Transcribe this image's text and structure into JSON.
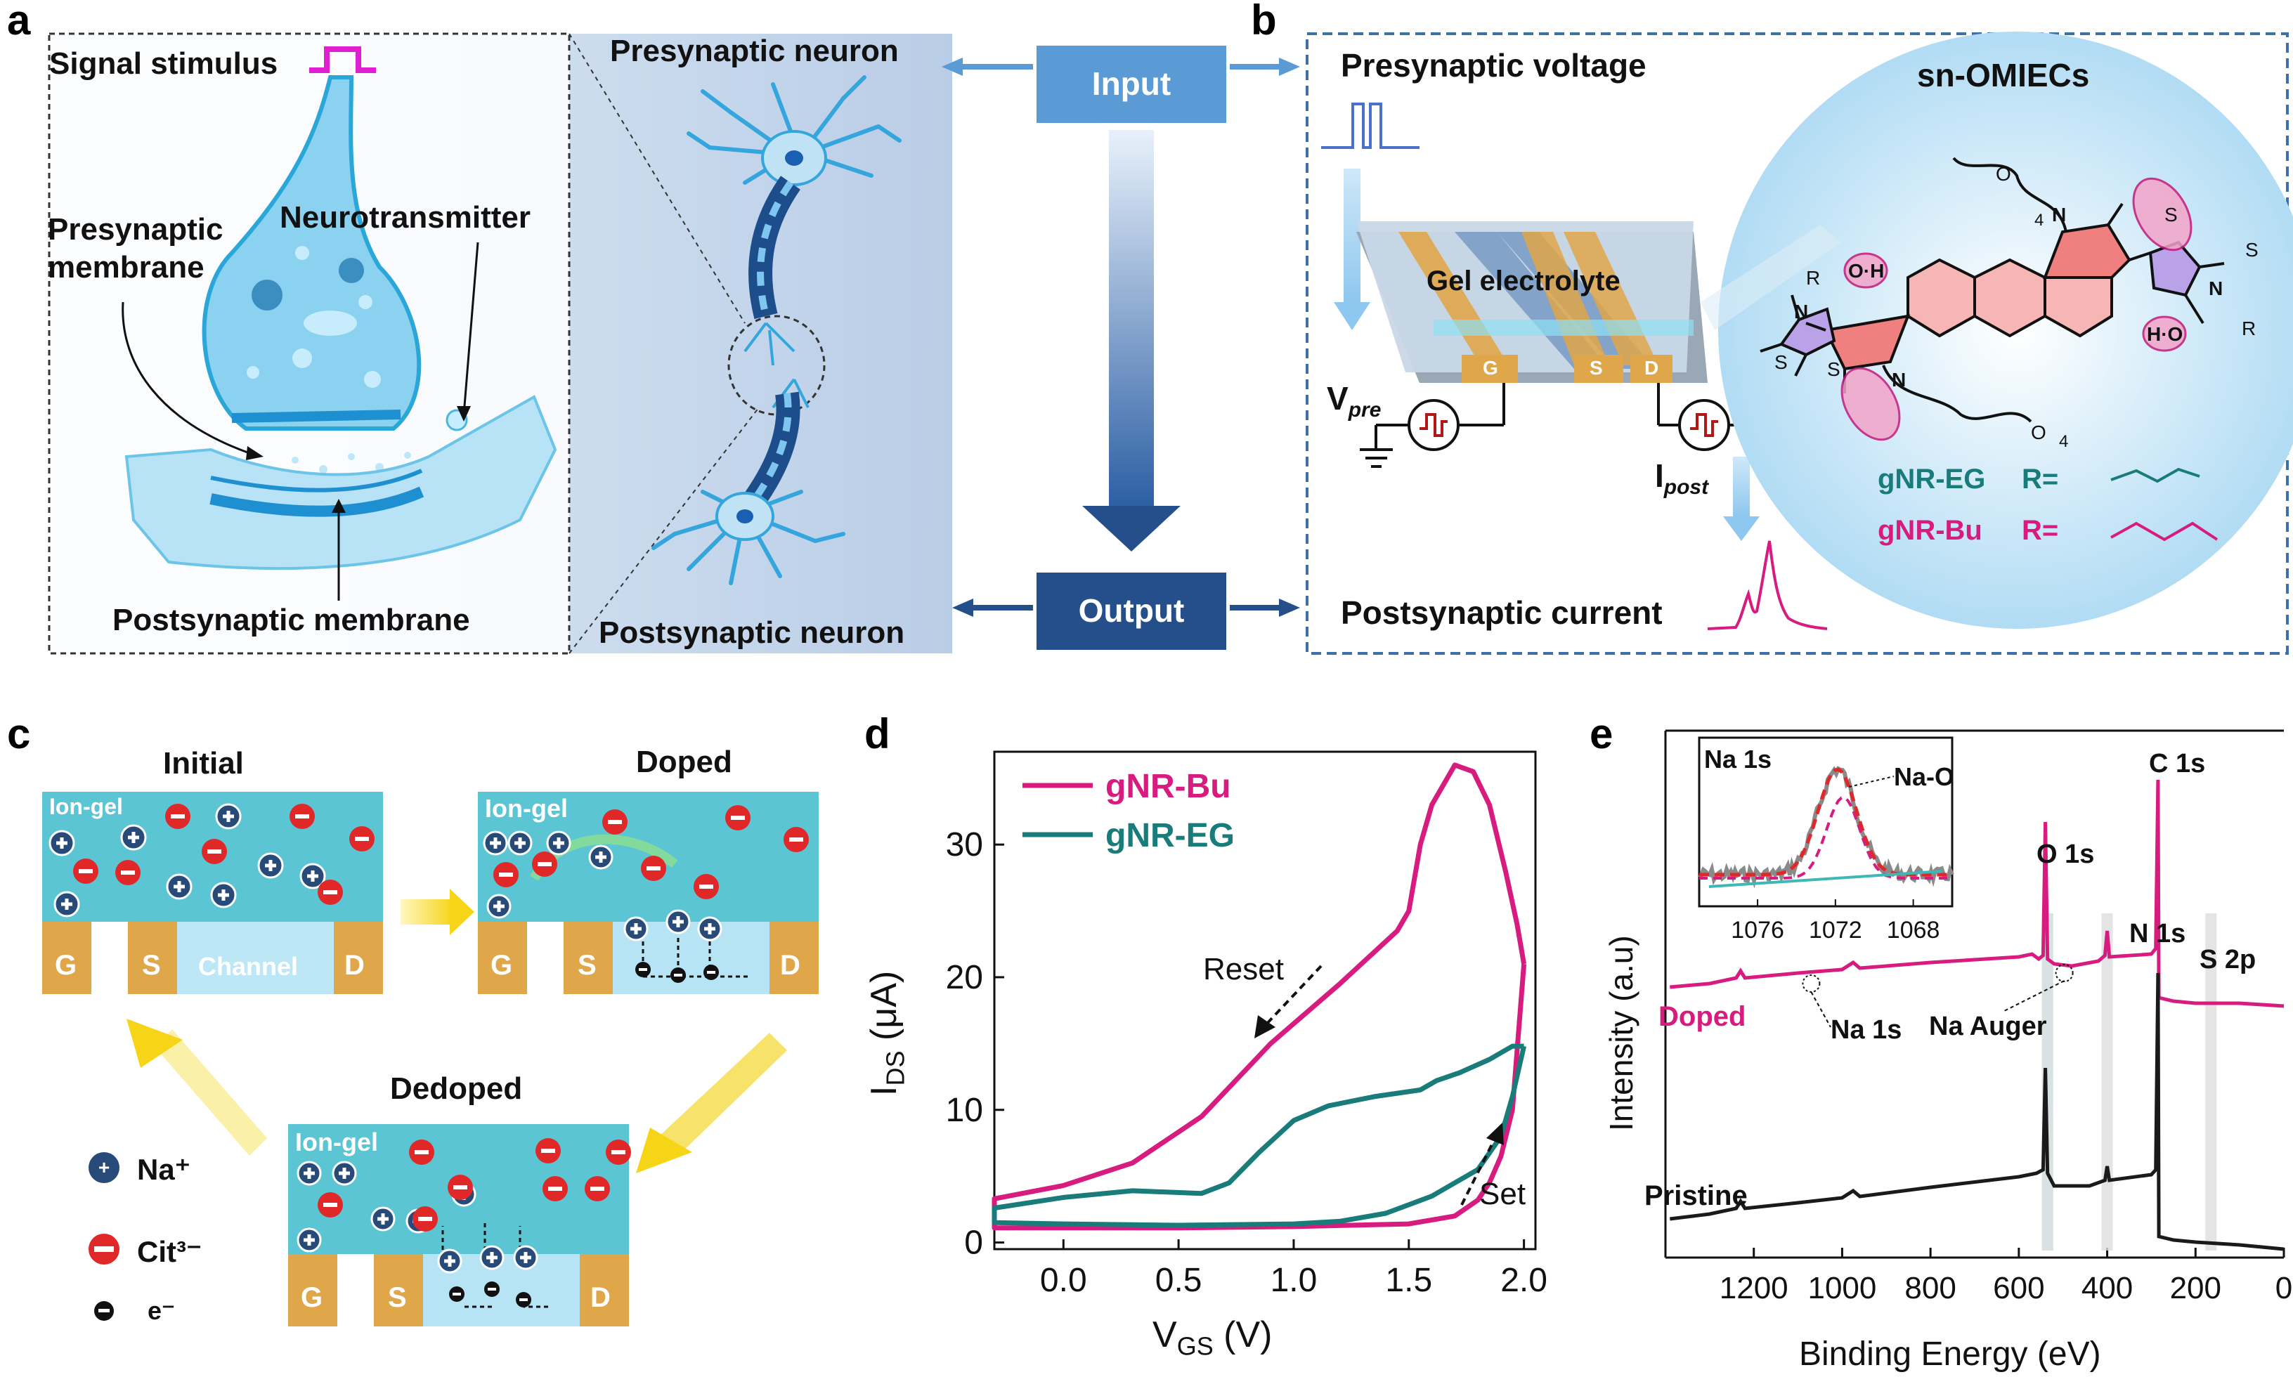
{
  "panel_labels": {
    "a": "a",
    "b": "b",
    "c": "c",
    "d": "d",
    "e": "e"
  },
  "panel_a": {
    "signal_stimulus": "Signal stimulus",
    "presynaptic_membrane_1": "Presynaptic",
    "presynaptic_membrane_2": "membrane",
    "neurotransmitter": "Neurotransmitter",
    "postsynaptic_membrane": "Postsynaptic membrane",
    "presynaptic_neuron": "Presynaptic neuron",
    "postsynaptic_neuron": "Postsynaptic neuron"
  },
  "flow": {
    "input": "Input",
    "output": "Output"
  },
  "panel_b": {
    "presynaptic_voltage": "Presynaptic voltage",
    "gel_electrolyte": "Gel electrolyte",
    "g": "G",
    "s": "S",
    "d": "D",
    "v_pre_main": "V",
    "v_pre_sub": "pre",
    "i_post_main": "I",
    "i_post_sub": "post",
    "postsynaptic_current": "Postsynaptic current",
    "sn_omiecs": "sn-OMIECs",
    "gnr_eg": "gNR-EG",
    "gnr_bu": "gNR-Bu",
    "r_eq": "R=",
    "mol_R": "R",
    "mol_N": "N",
    "mol_S": "S",
    "mol_O": "O",
    "mol_OH": "O·H",
    "mol_HO": "H·O",
    "mol_4": "4"
  },
  "panel_c": {
    "initial": "Initial",
    "doped": "Doped",
    "dedoped": "Dedoped",
    "ion_gel": "Ion-gel",
    "channel": "Channel",
    "g": "G",
    "s": "S",
    "d": "D",
    "legend_na": "Na⁺",
    "legend_cit": "Cit³⁻",
    "legend_e": "e⁻"
  },
  "panel_d": {
    "ylabel_main": "I",
    "ylabel_sub": "DS",
    "ylabel_unit": " (μA)",
    "xlabel_main": "V",
    "xlabel_sub": "GS",
    "xlabel_unit": " (V)",
    "reset": "Reset",
    "set": "Set"
  },
  "panel_e": {
    "ylabel": "Intensity (a.u)",
    "xlabel": "Binding Energy (eV)",
    "c1s": "C 1s",
    "o1s": "O 1s",
    "n1s": "N 1s",
    "s2p": "S 2p",
    "doped": "Doped",
    "pristine": "Pristine",
    "na1s_peak": "Na 1s",
    "na_auger": "Na Auger",
    "inset_title": "Na 1s",
    "inset_nao": "Na-O"
  },
  "colors": {
    "bu": "#d81b7f",
    "eg": "#1a7b7b",
    "black": "#1a1a1a",
    "flow_box": "#5a9bd5",
    "flow_box_dark": "#244f8a",
    "ion_gel": "#5bc5d3",
    "electrode": "#e0a64a",
    "na_ion": "#274a78",
    "cit_ion": "#e02828",
    "synapse": "#49b6e0"
  },
  "chart_data": [
    {
      "type": "line",
      "panel": "d",
      "xlabel": "VGS (V)",
      "ylabel": "IDS (μA)",
      "xlim": [
        -0.3,
        2.05
      ],
      "ylim": [
        -0.5,
        37
      ],
      "xticks": [
        0.0,
        0.5,
        1.0,
        1.5,
        2.0
      ],
      "xtick_labels": [
        "0.0",
        "0.5",
        "1.0",
        "1.5",
        "2.0"
      ],
      "yticks": [
        0,
        10,
        20,
        30
      ],
      "ytick_labels": [
        "0",
        "10",
        "20",
        "30"
      ],
      "legend_placement": "top-left",
      "series": [
        {
          "name": "gNR-Bu",
          "color": "#d81b7f",
          "points": [
            [
              2.0,
              21
            ],
            [
              1.95,
              10
            ],
            [
              1.9,
              6.5
            ],
            [
              1.85,
              4.5
            ],
            [
              1.8,
              3.2
            ],
            [
              1.7,
              2.0
            ],
            [
              1.5,
              1.4
            ],
            [
              1.0,
              1.2
            ],
            [
              0.5,
              1.1
            ],
            [
              0.0,
              1.1
            ],
            [
              -0.3,
              1.1
            ],
            [
              -0.3,
              3.3
            ],
            [
              0.0,
              4.3
            ],
            [
              0.3,
              6.0
            ],
            [
              0.6,
              9.5
            ],
            [
              0.9,
              15
            ],
            [
              1.2,
              19.5
            ],
            [
              1.45,
              23.5
            ],
            [
              1.5,
              25
            ],
            [
              1.55,
              30
            ],
            [
              1.6,
              33
            ],
            [
              1.7,
              36
            ],
            [
              1.78,
              35.5
            ],
            [
              1.85,
              33
            ],
            [
              1.92,
              28
            ],
            [
              1.97,
              24
            ],
            [
              2.0,
              21
            ]
          ]
        },
        {
          "name": "gNR-EG",
          "color": "#1a7b7b",
          "points": [
            [
              2.0,
              14.8
            ],
            [
              1.95,
              11
            ],
            [
              1.9,
              8
            ],
            [
              1.8,
              5.5
            ],
            [
              1.6,
              3.5
            ],
            [
              1.4,
              2.2
            ],
            [
              1.2,
              1.6
            ],
            [
              1.0,
              1.4
            ],
            [
              0.5,
              1.3
            ],
            [
              0.0,
              1.4
            ],
            [
              -0.3,
              1.5
            ],
            [
              -0.3,
              2.6
            ],
            [
              0.0,
              3.4
            ],
            [
              0.3,
              3.9
            ],
            [
              0.6,
              3.7
            ],
            [
              0.72,
              4.5
            ],
            [
              0.85,
              6.8
            ],
            [
              1.0,
              9.2
            ],
            [
              1.15,
              10.3
            ],
            [
              1.35,
              11.0
            ],
            [
              1.55,
              11.5
            ],
            [
              1.62,
              12.2
            ],
            [
              1.72,
              12.8
            ],
            [
              1.85,
              13.8
            ],
            [
              1.95,
              14.8
            ],
            [
              2.0,
              14.8
            ]
          ]
        }
      ],
      "annotations": [
        "Reset",
        "Set"
      ]
    },
    {
      "type": "line",
      "panel": "e",
      "xlabel": "Binding Energy (eV)",
      "ylabel": "Intensity (a.u)",
      "xlim": [
        1400,
        0
      ],
      "xticks": [
        1200,
        1000,
        800,
        600,
        400,
        200,
        0
      ],
      "xtick_labels": [
        "1200",
        "1000",
        "800",
        "600",
        "400",
        "200",
        "0"
      ],
      "series": [
        {
          "name": "Doped",
          "color": "#d81b7f"
        },
        {
          "name": "Pristine",
          "color": "#1a1a1a"
        }
      ],
      "peaks": [
        "C 1s",
        "O 1s",
        "N 1s",
        "S 2p",
        "Na 1s",
        "Na Auger"
      ],
      "inset": {
        "title": "Na 1s",
        "peak_label": "Na-O",
        "xlim": [
          1079,
          1066
        ],
        "xticks": [
          1076,
          1072,
          1068
        ],
        "xtick_labels": [
          "1076",
          "1072",
          "1068"
        ]
      }
    }
  ]
}
